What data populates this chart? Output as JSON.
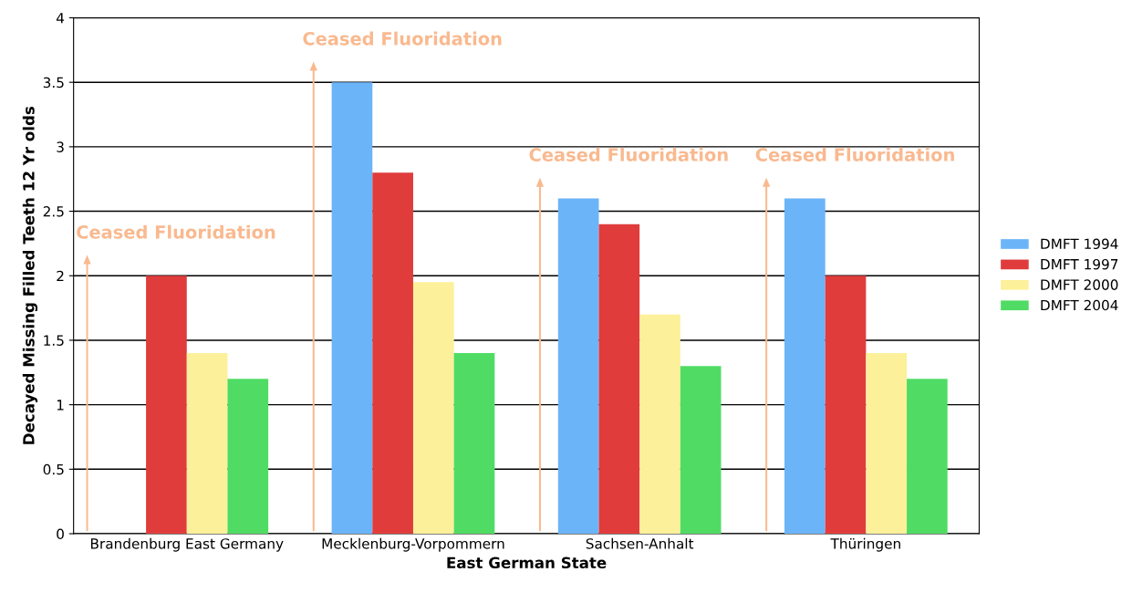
{
  "chart_data": {
    "type": "bar",
    "xlabel": "East German State",
    "ylabel": "Decayed Missing Filled Teeth 12 Yr olds",
    "categories": [
      "Brandenburg East Germany",
      "Mecklenburg-Vorpommern",
      "Sachsen-Anhalt",
      "Thüringen"
    ],
    "series": [
      {
        "name": "DMFT 1994",
        "color": "#6cb4f8",
        "values": [
          null,
          3.5,
          2.6,
          2.6
        ]
      },
      {
        "name": "DMFT 1997",
        "color": "#e03c3c",
        "values": [
          2.0,
          2.8,
          2.4,
          2.0
        ]
      },
      {
        "name": "DMFT 2000",
        "color": "#fcf09a",
        "values": [
          1.4,
          1.95,
          1.7,
          1.4
        ]
      },
      {
        "name": "DMFT 2004",
        "color": "#50dc64",
        "values": [
          1.2,
          1.4,
          1.3,
          1.2
        ]
      }
    ],
    "ylim": [
      0,
      4
    ],
    "yticks": [
      0,
      0.5,
      1,
      1.5,
      2,
      2.5,
      3,
      3.5,
      4
    ],
    "grid": "y",
    "legend": "right",
    "annotations": [
      "Ceased Fluoridation",
      "Ceased Fluoridation",
      "Ceased Fluoridation",
      "Ceased Fluoridation"
    ]
  }
}
